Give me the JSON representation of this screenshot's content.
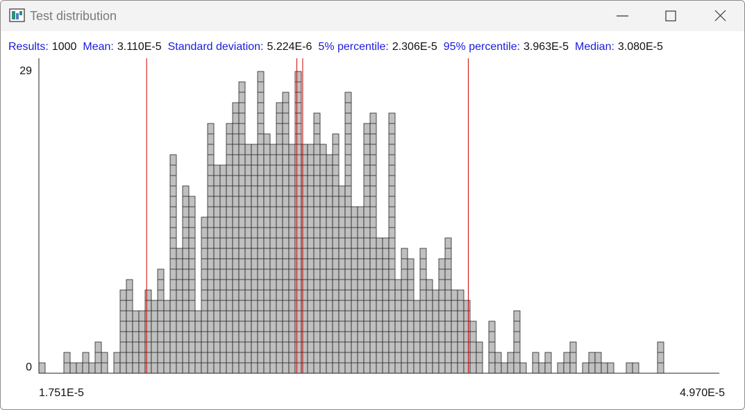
{
  "window": {
    "title": "Test distribution"
  },
  "chart_data": {
    "type": "histogram",
    "stats": [
      {
        "name": "Results:",
        "value": 1000
      },
      {
        "name": "Mean:",
        "value": 3.11e-05,
        "label": "3.110E-5",
        "marker": true
      },
      {
        "name": "Standard deviation:",
        "value": 5.224e-06,
        "label": "5.224E-6"
      },
      {
        "name": "5% percentile:",
        "value": 2.306e-05,
        "label": "2.306E-5",
        "marker": true
      },
      {
        "name": "95% percentile:",
        "value": 3.963e-05,
        "label": "3.963E-5",
        "marker": true
      },
      {
        "name": "Median:",
        "value": 3.08e-05,
        "label": "3.080E-5",
        "marker": true
      }
    ],
    "bins": [
      1.751e-05,
      1.78319e-05,
      1.81538e-05,
      1.84757e-05,
      1.87976e-05,
      1.91195e-05,
      1.94414e-05,
      1.97633e-05,
      2.00852e-05,
      2.04071e-05,
      2.0729e-05,
      2.10509e-05,
      2.13728e-05,
      2.16947e-05,
      2.20166e-05,
      2.23385e-05,
      2.26604e-05,
      2.29823e-05,
      2.33042e-05,
      2.36261e-05,
      2.3948e-05,
      2.42699e-05,
      2.45918e-05,
      2.49137e-05,
      2.52356e-05,
      2.55575e-05,
      2.58794e-05,
      2.62013e-05,
      2.65232e-05,
      2.68451e-05,
      2.7167e-05,
      2.74889e-05,
      2.78108e-05,
      2.81327e-05,
      2.84546e-05,
      2.87765e-05,
      2.90984e-05,
      2.94203e-05,
      2.97422e-05,
      3.00641e-05,
      3.0386e-05,
      3.07079e-05,
      3.10298e-05,
      3.13517e-05,
      3.16736e-05,
      3.19955e-05,
      3.23174e-05,
      3.26393e-05,
      3.29612e-05,
      3.32831e-05,
      3.3605e-05,
      3.39269e-05,
      3.42488e-05,
      3.45707e-05,
      3.48926e-05,
      3.52145e-05,
      3.55364e-05,
      3.58583e-05,
      3.61802e-05,
      3.65021e-05,
      3.6824e-05,
      3.71459e-05,
      3.74678e-05,
      3.77897e-05,
      3.81116e-05,
      3.84335e-05,
      3.87554e-05,
      3.90773e-05,
      3.93992e-05,
      3.97211e-05,
      4.0043e-05,
      4.03649e-05,
      4.06868e-05,
      4.10087e-05,
      4.13306e-05,
      4.16525e-05,
      4.19744e-05,
      4.22963e-05,
      4.26182e-05,
      4.29401e-05,
      4.3262e-05,
      4.35839e-05,
      4.39058e-05,
      4.42277e-05,
      4.45496e-05,
      4.48715e-05,
      4.51934e-05,
      4.55153e-05,
      4.58372e-05,
      4.61591e-05,
      4.6481e-05,
      4.68029e-05,
      4.71248e-05,
      4.74467e-05,
      4.77686e-05,
      4.80905e-05,
      4.84124e-05,
      4.87343e-05,
      4.90562e-05,
      4.93781e-05,
      4.97e-05
    ],
    "values": [
      1,
      0,
      0,
      0,
      2,
      1,
      1,
      2,
      1,
      3,
      2,
      0,
      2,
      8,
      9,
      6,
      6,
      8,
      7,
      10,
      7,
      21,
      12,
      18,
      17,
      6,
      15,
      24,
      20,
      20,
      24,
      26,
      28,
      22,
      22,
      29,
      23,
      22,
      26,
      27,
      22,
      29,
      22,
      22,
      25,
      22,
      21,
      23,
      18,
      27,
      16,
      16,
      24,
      25,
      13,
      13,
      25,
      9,
      12,
      11,
      7,
      12,
      9,
      8,
      11,
      13,
      8,
      8,
      7,
      5,
      3,
      0,
      5,
      2,
      1,
      2,
      6,
      1,
      0,
      2,
      1,
      2,
      0,
      1,
      2,
      3,
      0,
      1,
      2,
      2,
      1,
      1,
      0,
      0,
      1,
      1,
      0,
      0,
      0,
      3
    ],
    "color": "#c0c0c0",
    "marker_color": "#d00000",
    "xlim": [
      1.751e-05,
      4.97e-05
    ],
    "xticks": [
      {
        "value": 1.751e-05,
        "label": "1.751E-5"
      },
      {
        "value": 4.97e-05,
        "label": "4.970E-5"
      }
    ],
    "ylim": [
      0,
      29
    ],
    "yticks": [
      0,
      29
    ]
  }
}
